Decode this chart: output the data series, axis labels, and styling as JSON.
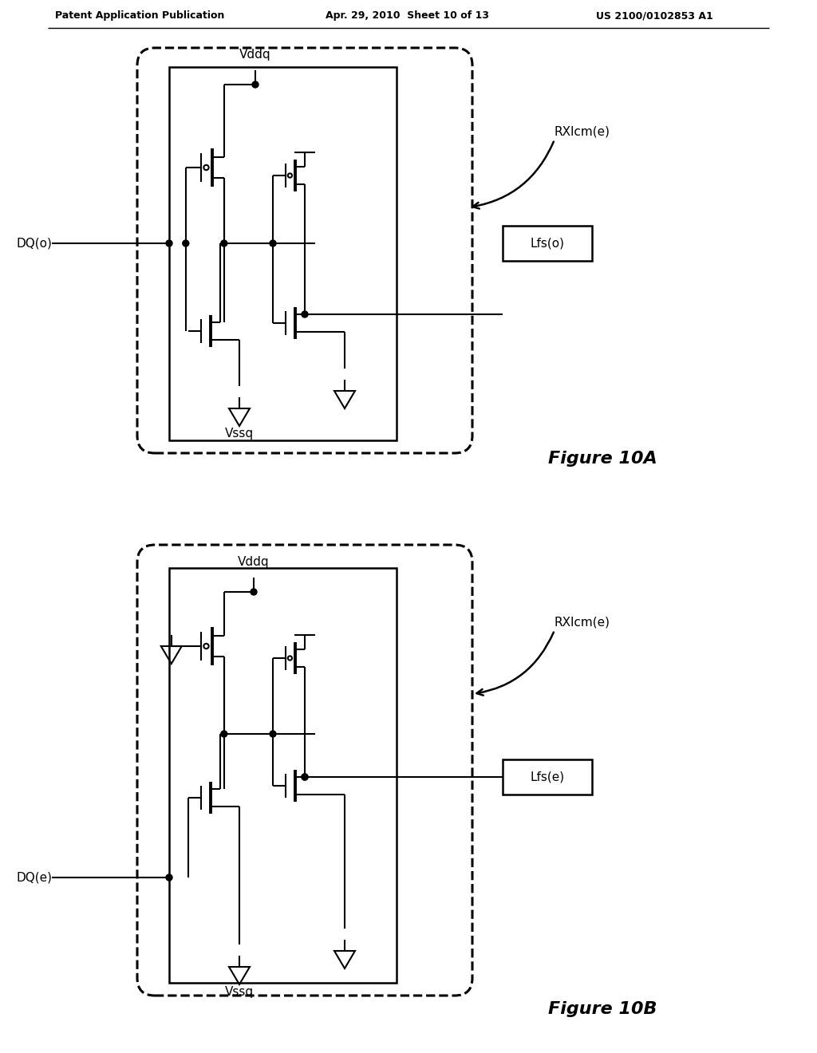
{
  "header_left": "Patent Application Publication",
  "header_center": "Apr. 29, 2010  Sheet 10 of 13",
  "header_right": "US 2100/0102853 A1",
  "fig10a_label": "Figure 10A",
  "fig10b_label": "Figure 10B",
  "vddq": "Vddq",
  "vssq": "Vssq",
  "dq_o": "DQ(o)",
  "dq_e": "DQ(e)",
  "rxlcm": "RXlcm(e)",
  "lfs_o": "Lfs(o)",
  "lfs_e": "Lfs(e)"
}
